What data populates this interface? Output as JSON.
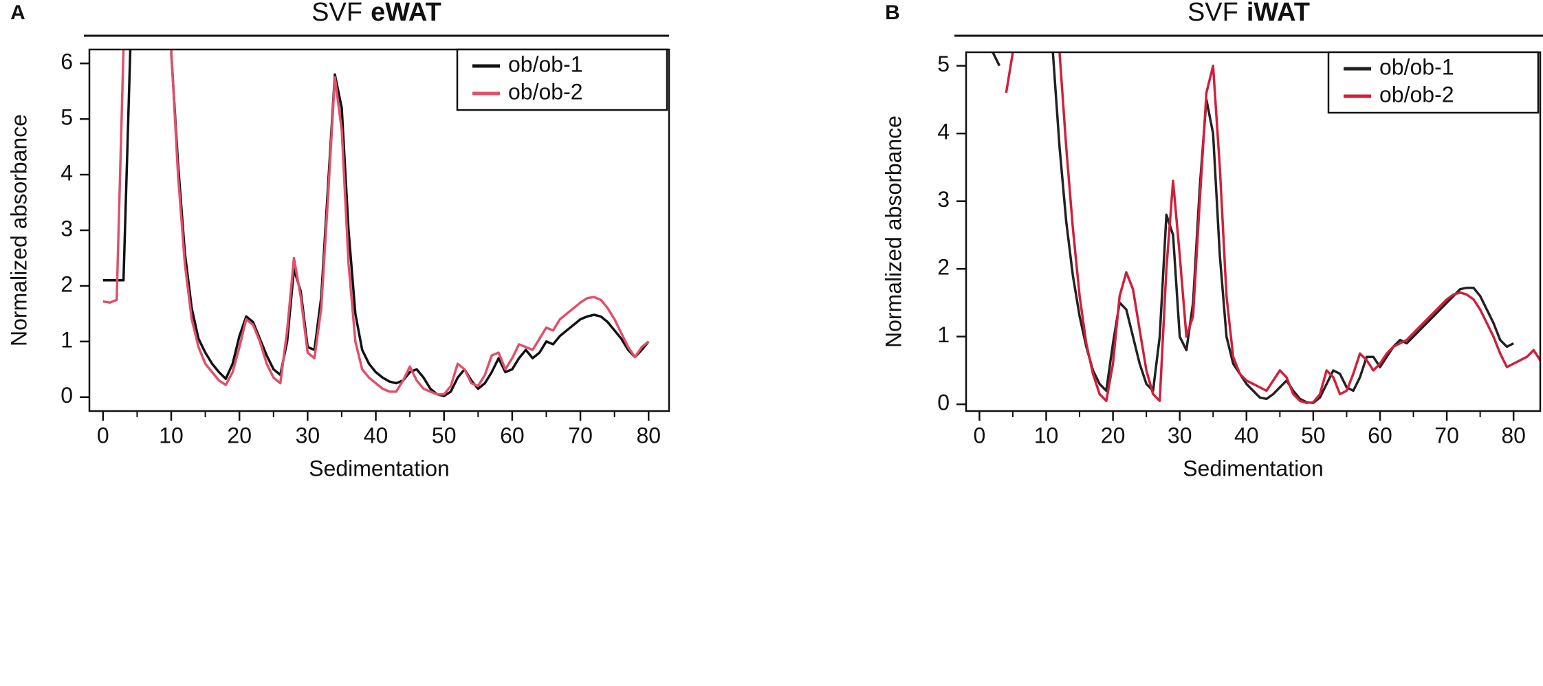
{
  "chart_data": [
    {
      "type": "line",
      "panel": "A",
      "title": "SVF",
      "title_bold": "eWAT",
      "x_label": "Sedimentation",
      "y_label": "Normalized absorbance",
      "xlim": [
        -2,
        83
      ],
      "xticks": [
        0,
        10,
        20,
        30,
        40,
        50,
        60,
        70,
        80
      ],
      "ylim": [
        -0.25,
        6.25
      ],
      "yticks": [
        0,
        1,
        2,
        3,
        4,
        5,
        6
      ],
      "legend": "top-right",
      "x": [
        0,
        1,
        2,
        3,
        4,
        5,
        6,
        7,
        8,
        9,
        10,
        11,
        12,
        13,
        14,
        15,
        16,
        17,
        18,
        19,
        20,
        21,
        22,
        23,
        24,
        25,
        26,
        27,
        28,
        29,
        30,
        31,
        32,
        33,
        34,
        35,
        36,
        37,
        38,
        39,
        40,
        41,
        42,
        43,
        44,
        45,
        46,
        47,
        48,
        49,
        50,
        51,
        52,
        53,
        54,
        55,
        56,
        57,
        58,
        59,
        60,
        61,
        62,
        63,
        64,
        65,
        66,
        67,
        68,
        69,
        70,
        71,
        72,
        73,
        74,
        75,
        76,
        77,
        78,
        79,
        80
      ],
      "series": [
        {
          "name": "ob/ob-1",
          "color": "#111111",
          "values": [
            2.1,
            2.1,
            2.1,
            2.1,
            6.25,
            null,
            null,
            null,
            null,
            null,
            6.2,
            4.2,
            2.6,
            1.6,
            1.05,
            0.8,
            0.6,
            0.45,
            0.33,
            0.6,
            1.1,
            1.45,
            1.35,
            1.05,
            0.75,
            0.5,
            0.4,
            1.0,
            2.3,
            1.9,
            0.9,
            0.85,
            1.8,
            3.8,
            5.8,
            5.2,
            3.0,
            1.5,
            0.85,
            0.6,
            0.45,
            0.35,
            0.28,
            0.25,
            0.3,
            0.45,
            0.5,
            0.35,
            0.15,
            0.05,
            0.02,
            0.1,
            0.35,
            0.5,
            0.3,
            0.15,
            0.25,
            0.45,
            0.7,
            0.45,
            0.5,
            0.7,
            0.85,
            0.7,
            0.8,
            1.0,
            0.95,
            1.1,
            1.2,
            1.3,
            1.4,
            1.45,
            1.48,
            1.45,
            1.35,
            1.2,
            1.05,
            0.85,
            0.72,
            0.85,
            1.0
          ]
        },
        {
          "name": "ob/ob-2",
          "color": "#e0506a",
          "values": [
            1.72,
            1.7,
            1.75,
            6.25,
            null,
            null,
            null,
            null,
            null,
            null,
            6.25,
            4.0,
            2.4,
            1.4,
            0.9,
            0.6,
            0.45,
            0.3,
            0.22,
            0.45,
            0.9,
            1.4,
            1.3,
            1.0,
            0.6,
            0.35,
            0.25,
            1.2,
            2.5,
            1.8,
            0.8,
            0.7,
            1.6,
            3.6,
            5.75,
            4.8,
            2.4,
            1.0,
            0.5,
            0.35,
            0.25,
            0.15,
            0.1,
            0.1,
            0.3,
            0.55,
            0.3,
            0.15,
            0.1,
            0.05,
            0.05,
            0.2,
            0.6,
            0.5,
            0.25,
            0.2,
            0.4,
            0.75,
            0.8,
            0.5,
            0.7,
            0.95,
            0.9,
            0.85,
            1.05,
            1.25,
            1.2,
            1.4,
            1.5,
            1.6,
            1.7,
            1.78,
            1.8,
            1.75,
            1.6,
            1.4,
            1.15,
            0.9,
            0.72,
            0.9,
            1.0
          ]
        }
      ]
    },
    {
      "type": "line",
      "panel": "B",
      "title": "SVF",
      "title_bold": "iWAT",
      "x_label": "Sedimentation",
      "y_label": "Normalized absorbance",
      "xlim": [
        -2,
        84
      ],
      "xticks": [
        0,
        10,
        20,
        30,
        40,
        50,
        60,
        70,
        80
      ],
      "ylim": [
        -0.1,
        5.2
      ],
      "yticks": [
        0,
        1,
        2,
        3,
        4,
        5
      ],
      "legend": "top-right",
      "x": [
        0,
        1,
        2,
        3,
        4,
        5,
        6,
        7,
        8,
        9,
        10,
        11,
        12,
        13,
        14,
        15,
        16,
        17,
        18,
        19,
        20,
        21,
        22,
        23,
        24,
        25,
        26,
        27,
        28,
        29,
        30,
        31,
        32,
        33,
        34,
        35,
        36,
        37,
        38,
        39,
        40,
        41,
        42,
        43,
        44,
        45,
        46,
        47,
        48,
        49,
        50,
        51,
        52,
        53,
        54,
        55,
        56,
        57,
        58,
        59,
        60,
        61,
        62,
        63,
        64,
        65,
        66,
        67,
        68,
        69,
        70,
        71,
        72,
        73,
        74,
        75,
        76,
        77,
        78,
        79,
        80,
        81,
        82,
        83,
        84
      ],
      "series": [
        {
          "name": "ob/ob-1",
          "color": "#222222",
          "values": [
            null,
            null,
            5.2,
            5.0,
            null,
            null,
            null,
            null,
            null,
            null,
            null,
            5.2,
            3.8,
            2.7,
            1.9,
            1.3,
            0.85,
            0.5,
            0.3,
            0.2,
            0.9,
            1.5,
            1.4,
            1.0,
            0.6,
            0.3,
            0.2,
            1.0,
            2.8,
            2.5,
            1.0,
            0.8,
            1.5,
            3.2,
            4.5,
            4.0,
            2.2,
            1.0,
            0.6,
            0.45,
            0.3,
            0.2,
            0.1,
            0.08,
            0.15,
            0.25,
            0.35,
            0.2,
            0.08,
            0.03,
            0.02,
            0.1,
            0.3,
            0.5,
            0.45,
            0.25,
            0.2,
            0.4,
            0.7,
            0.7,
            0.55,
            0.7,
            0.85,
            0.95,
            0.9,
            1.0,
            1.1,
            1.2,
            1.3,
            1.4,
            1.5,
            1.6,
            1.7,
            1.72,
            1.72,
            1.6,
            1.4,
            1.2,
            0.95,
            0.85,
            0.9,
            null,
            null,
            null,
            null
          ]
        },
        {
          "name": "ob/ob-2",
          "color": "#d0203a",
          "values": [
            null,
            null,
            null,
            null,
            4.6,
            5.2,
            null,
            null,
            null,
            null,
            null,
            null,
            5.2,
            3.8,
            2.6,
            1.6,
            0.9,
            0.45,
            0.15,
            0.05,
            0.6,
            1.6,
            1.95,
            1.7,
            1.1,
            0.5,
            0.15,
            0.05,
            2.0,
            3.3,
            2.2,
            1.0,
            1.3,
            3.0,
            4.6,
            5.0,
            3.5,
            1.6,
            0.7,
            0.45,
            0.35,
            0.3,
            0.25,
            0.2,
            0.35,
            0.5,
            0.4,
            0.15,
            0.05,
            0.02,
            0.03,
            0.15,
            0.5,
            0.4,
            0.15,
            0.2,
            0.45,
            0.75,
            0.65,
            0.5,
            0.6,
            0.75,
            0.85,
            0.9,
            0.95,
            1.05,
            1.15,
            1.25,
            1.35,
            1.45,
            1.55,
            1.62,
            1.65,
            1.62,
            1.55,
            1.4,
            1.2,
            1.0,
            0.75,
            0.55,
            0.6,
            0.65,
            0.7,
            0.8,
            0.65
          ]
        }
      ]
    }
  ]
}
